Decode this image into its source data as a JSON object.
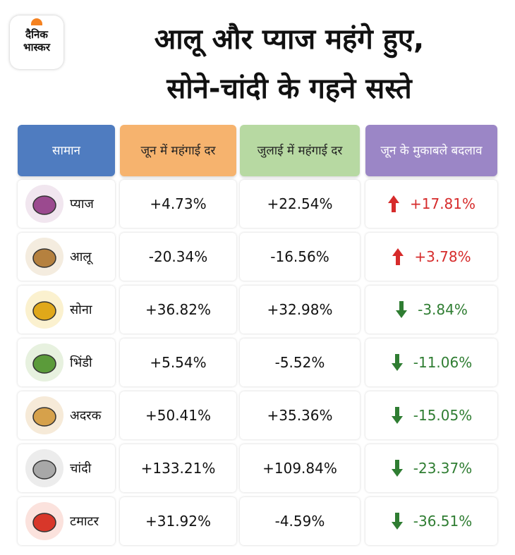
{
  "logo": {
    "line1": "दैनिक",
    "line2": "भास्कर"
  },
  "header": {
    "title_line1": "आलू और प्याज महंगे हुए,",
    "title_line2": "सोने-चांदी के गहने सस्ते"
  },
  "table": {
    "columns": [
      "सामान",
      "जून में महंगाई दर",
      "जुलाई में महंगाई दर",
      "जून के मुकाबले बदलाव"
    ],
    "rows": [
      [
        "प्याज",
        "+4.73%",
        "+22.54%",
        "+17.81%"
      ],
      [
        "आलू",
        "-20.34%",
        "-16.56%",
        "+3.78%"
      ],
      [
        "सोना",
        "+36.82%",
        "+32.98%",
        "-3.84%"
      ],
      [
        "भिंडी",
        "+5.54%",
        "-5.52%",
        "-11.06%"
      ],
      [
        "अदरक",
        "+50.41%",
        "+35.36%",
        "-15.05%"
      ],
      [
        "चांदी",
        "+133.21%",
        "+109.84%",
        "-23.37%"
      ],
      [
        "टमाटर",
        "+31.92%",
        "-4.59%",
        "-36.51%"
      ]
    ]
  }
}
